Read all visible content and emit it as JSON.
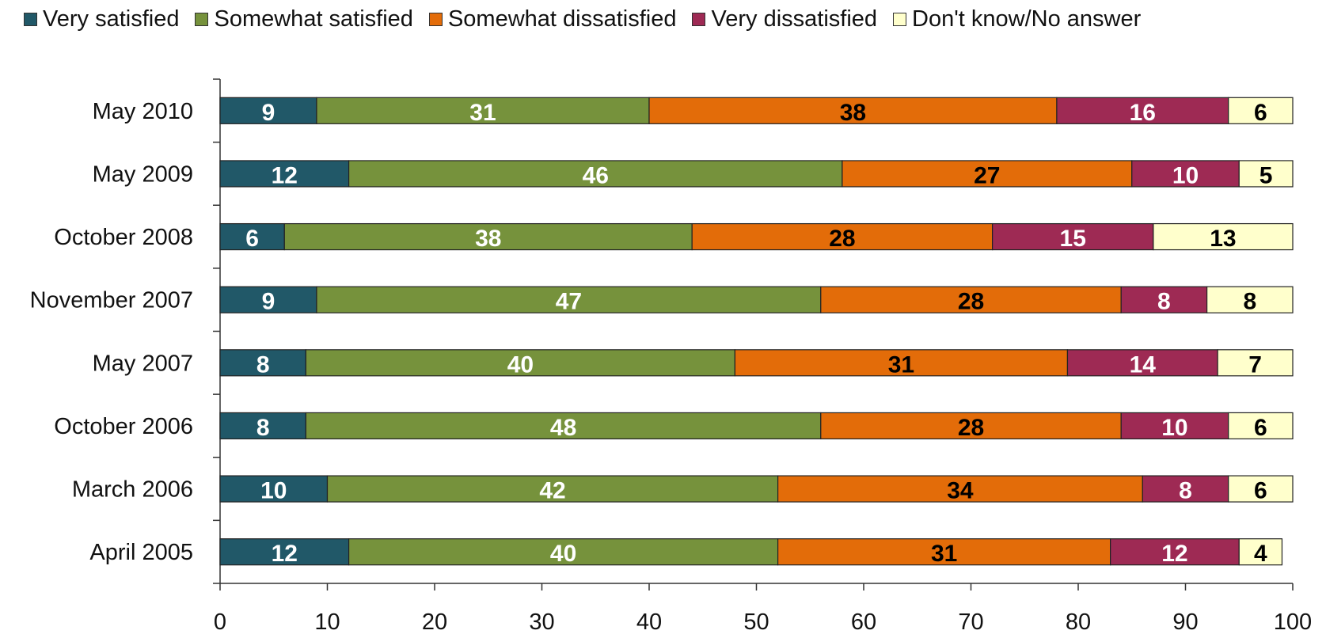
{
  "chart_data": {
    "type": "bar",
    "orientation": "horizontal",
    "stacked": true,
    "categories": [
      "May 2010",
      "May 2009",
      "October 2008",
      "November 2007",
      "May 2007",
      "October 2006",
      "March 2006",
      "April 2005"
    ],
    "series": [
      {
        "name": "Very satisfied",
        "color": "#215868",
        "label_color": "#ffffff",
        "values": [
          9,
          12,
          6,
          9,
          8,
          8,
          10,
          12
        ]
      },
      {
        "name": "Somewhat satisfied",
        "color": "#76923C",
        "label_color": "#ffffff",
        "values": [
          31,
          46,
          38,
          47,
          40,
          48,
          42,
          40
        ]
      },
      {
        "name": "Somewhat dissatisfied",
        "color": "#E36C09",
        "label_color": "#000000",
        "values": [
          38,
          27,
          28,
          28,
          31,
          28,
          34,
          31
        ]
      },
      {
        "name": "Very dissatisfied",
        "color": "#9E2A54",
        "label_color": "#ffffff",
        "values": [
          16,
          10,
          15,
          8,
          14,
          10,
          8,
          12
        ]
      },
      {
        "name": "Don't know/No answer",
        "color": "#FFFFCC",
        "label_color": "#000000",
        "values": [
          6,
          5,
          13,
          8,
          7,
          6,
          6,
          4
        ]
      }
    ],
    "xlim": [
      0,
      100
    ],
    "xticks": [
      0,
      10,
      20,
      30,
      40,
      50,
      60,
      70,
      80,
      90,
      100
    ],
    "title": "",
    "xlabel": "",
    "ylabel": "",
    "legend_position": "top",
    "grid": false
  }
}
